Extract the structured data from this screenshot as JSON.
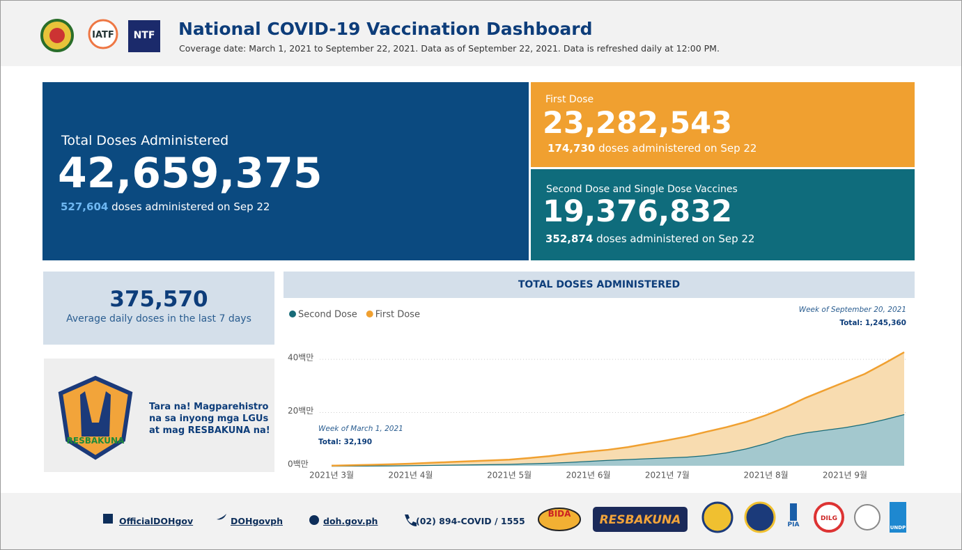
{
  "header": {
    "title": "National COVID-19 Vaccination Dashboard",
    "subtitle": "Coverage date: March 1, 2021 to September 22, 2021. Data as of September 22, 2021. Data is refreshed daily at 12:00 PM.",
    "logos": [
      "IATF",
      "NTF"
    ]
  },
  "total": {
    "label": "Total Doses Administered",
    "value": "42,659,375",
    "daily_value": "527,604",
    "daily_text": "doses administered on Sep 22"
  },
  "first_dose": {
    "label": "First Dose",
    "value": "23,282,543",
    "daily_value": "174,730",
    "daily_text": "doses administered on Sep 22"
  },
  "second_dose": {
    "label": "Second Dose and Single Dose Vaccines",
    "value": "19,376,832",
    "daily_value": "352,874",
    "daily_text": "doses administered on Sep 22"
  },
  "average": {
    "value": "375,570",
    "label": "Average daily doses in the last 7 days"
  },
  "promo": {
    "lines": [
      "Tara na! Magparehistro",
      "na sa inyong mga LGUs",
      "at mag RESBAKUNA na!"
    ],
    "logo_text": "RESBAKUNA"
  },
  "chart_data": {
    "type": "stacked-area",
    "title": "TOTAL DOSES ADMINISTERED",
    "x": [
      "2021년 3월",
      null,
      null,
      null,
      "2021년 4월",
      null,
      null,
      null,
      null,
      "2021년 5월",
      null,
      null,
      null,
      "2021년 6월",
      null,
      null,
      null,
      "2021년 7월",
      null,
      null,
      null,
      null,
      "2021년 8월",
      null,
      null,
      null,
      "2021년 9월",
      null,
      null,
      null
    ],
    "series": [
      {
        "name": "Second Dose",
        "color": "#176b78",
        "fill": "#a3c8ce",
        "values": [
          0,
          20000,
          50000,
          100000,
          200000,
          300000,
          400000,
          500000,
          600000,
          700000,
          900000,
          1100000,
          1400000,
          1800000,
          2200000,
          2500000,
          2800000,
          3100000,
          3400000,
          4000000,
          5000000,
          6500000,
          8500000,
          11000000,
          12500000,
          13500000,
          14500000,
          15800000,
          17500000,
          19380000
        ]
      },
      {
        "name": "First Dose",
        "color": "#f0a030",
        "fill": "#f8dcb0",
        "values": [
          30000,
          180000,
          300000,
          450000,
          600000,
          800000,
          1000000,
          1200000,
          1400000,
          1600000,
          2000000,
          2500000,
          3100000,
          3500000,
          3800000,
          4500000,
          5500000,
          6500000,
          7600000,
          8800000,
          9500000,
          10000000,
          10500000,
          11000000,
          13000000,
          15000000,
          17000000,
          18700000,
          21000000,
          23280000
        ]
      }
    ],
    "ylim": [
      0,
      45000000
    ],
    "yticks": [
      {
        "value": 0,
        "label": "0백만"
      },
      {
        "value": 20000000,
        "label": "20백만"
      },
      {
        "value": 40000000,
        "label": "40백만"
      }
    ],
    "grid": true,
    "annotations": [
      {
        "title": "Week of March 1, 2021",
        "text": "Total: 32,190"
      },
      {
        "title": "Week of September 20, 2021",
        "text": "Total: 1,245,360"
      }
    ]
  },
  "footer": {
    "links": [
      "OfficialDOHgov",
      "DOHgovph",
      "doh.gov.ph",
      "(02) 894-COVID / 1555"
    ],
    "logos": [
      "BIDA",
      "RESBAKUNA",
      "DILG",
      "PIA",
      "UNDP"
    ]
  }
}
